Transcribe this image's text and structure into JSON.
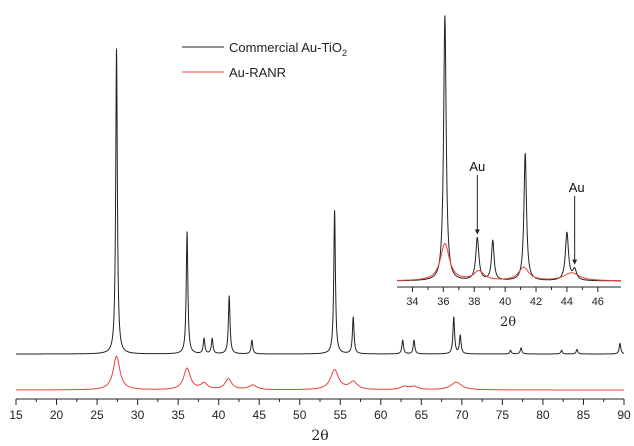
{
  "chart_data": {
    "type": "line",
    "title": "",
    "xlabel": "2θ",
    "ylabel": "",
    "xlim": [
      15,
      90
    ],
    "x_ticks": [
      15,
      20,
      25,
      30,
      35,
      40,
      45,
      50,
      55,
      60,
      65,
      70,
      75,
      80,
      85,
      90
    ],
    "grid": false,
    "legend_position": "top-center",
    "legend": [
      {
        "name_main": "Commercial Au-TiO",
        "name_sub": "2",
        "color": "#222222"
      },
      {
        "name_main": "Au-RANR",
        "name_sub": "",
        "color": "#e8403a"
      }
    ],
    "series": [
      {
        "name": "Commercial Au-TiO2",
        "color": "#222222",
        "baseline": 8,
        "peaks": [
          [
            27.4,
            100,
            0.12
          ],
          [
            36.1,
            40,
            0.12
          ],
          [
            38.2,
            5,
            0.12
          ],
          [
            39.2,
            5,
            0.12
          ],
          [
            41.3,
            19,
            0.12
          ],
          [
            44.1,
            4.5,
            0.12
          ],
          [
            54.3,
            47,
            0.12
          ],
          [
            56.6,
            12,
            0.12
          ],
          [
            62.7,
            4.5,
            0.12
          ],
          [
            64.1,
            4.5,
            0.12
          ],
          [
            69.0,
            12,
            0.12
          ],
          [
            69.8,
            6,
            0.12
          ],
          [
            76.0,
            1.2,
            0.12
          ],
          [
            77.3,
            2,
            0.12
          ],
          [
            82.3,
            1.2,
            0.12
          ],
          [
            84.2,
            1.5,
            0.12
          ],
          [
            89.5,
            3.5,
            0.12
          ]
        ]
      },
      {
        "name": "Au-RANR",
        "color": "#e8403a",
        "baseline": 0,
        "peaks": [
          [
            27.4,
            11,
            0.5
          ],
          [
            36.1,
            7,
            0.5
          ],
          [
            38.2,
            2,
            0.5
          ],
          [
            41.2,
            3.5,
            0.5
          ],
          [
            44.2,
            1.5,
            0.6
          ],
          [
            54.3,
            6.5,
            0.6
          ],
          [
            56.6,
            2.5,
            0.6
          ],
          [
            62.9,
            1,
            0.6
          ],
          [
            64.1,
            1,
            0.6
          ],
          [
            69.3,
            2.5,
            0.8
          ]
        ]
      }
    ],
    "inset": {
      "xlim": [
        33,
        47.5
      ],
      "x_ticks": [
        34,
        36,
        38,
        40,
        42,
        44,
        46
      ],
      "xlabel": "2θ",
      "annotations": [
        {
          "text": "Au",
          "x": 38.2
        },
        {
          "text": "Au",
          "x": 44.5
        }
      ],
      "series": [
        {
          "name": "Commercial Au-TiO2",
          "color": "#222222",
          "baseline": 3,
          "peaks": [
            [
              36.1,
              100,
              0.1
            ],
            [
              38.2,
              16,
              0.12
            ],
            [
              39.2,
              15,
              0.1
            ],
            [
              41.3,
              48,
              0.1
            ],
            [
              44.0,
              18,
              0.12
            ],
            [
              44.5,
              4,
              0.15
            ]
          ]
        },
        {
          "name": "Au-RANR",
          "color": "#e8403a",
          "baseline": 3,
          "peaks": [
            [
              36.1,
              14,
              0.35
            ],
            [
              38.3,
              3.5,
              0.4
            ],
            [
              41.2,
              5,
              0.4
            ],
            [
              44.3,
              3,
              0.6
            ]
          ]
        }
      ]
    }
  }
}
